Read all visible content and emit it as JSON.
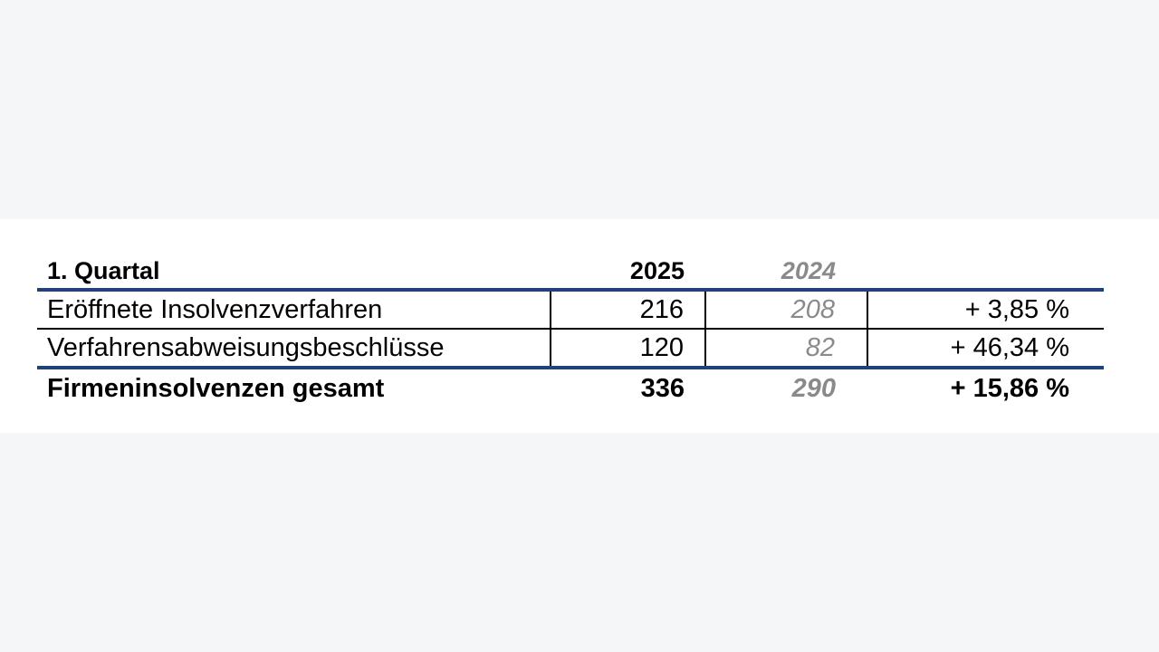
{
  "chart_data": {
    "type": "table",
    "header": {
      "label": "1. Quartal",
      "col_2025": "2025",
      "col_2024": "2024",
      "col_change": ""
    },
    "rows": [
      {
        "label": "Eröffnete Insolvenzverfahren",
        "v2025": "216",
        "v2024": "208",
        "change": "+ 3,85 %"
      },
      {
        "label": "Verfahrensabweisungsbeschlüsse",
        "v2025": "120",
        "v2024": "82",
        "change": "+ 46,34 %"
      }
    ],
    "total": {
      "label": "Firmeninsolvenzen gesamt",
      "v2025": "336",
      "v2024": "290",
      "change": "+ 15,86 %"
    }
  },
  "colors": {
    "rule_accent": "#1f4278",
    "muted_text": "#8a8a8a",
    "panel_background": "#ffffff",
    "page_background": "#f5f6f8"
  }
}
